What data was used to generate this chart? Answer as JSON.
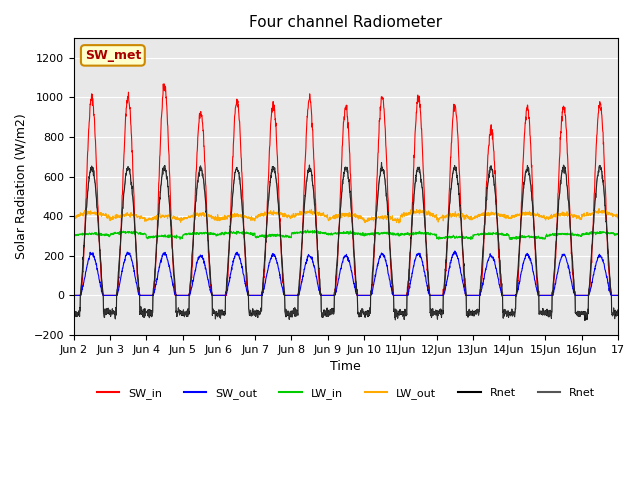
{
  "title": "Four channel Radiometer",
  "xlabel": "Time",
  "ylabel": "Solar Radiation (W/m2)",
  "ylim": [
    -200,
    1300
  ],
  "yticks": [
    -200,
    0,
    200,
    400,
    600,
    800,
    1000,
    1200
  ],
  "xtick_positions": [
    0,
    1,
    2,
    3,
    4,
    5,
    6,
    7,
    8,
    9,
    10,
    11,
    12,
    13,
    14,
    15
  ],
  "xtick_labels": [
    "Jun 2",
    "Jun 3",
    "Jun 4",
    "Jun 5",
    "Jun 6",
    "Jun 7",
    "Jun 8",
    "Jun 9",
    "Jun 10",
    "11Jun",
    "12Jun",
    "13Jun",
    "14Jun",
    "15Jun",
    "16Jun",
    "17"
  ],
  "annotation_text": "SW_met",
  "annotation_bg": "#ffffcc",
  "annotation_edge": "#cc8800",
  "annotation_text_color": "#aa0000",
  "colors": {
    "SW_in": "#ff0000",
    "SW_out": "#0000ff",
    "LW_in": "#00cc00",
    "LW_out": "#ffaa00",
    "Rnet_black": "#000000",
    "Rnet_dark": "#555555"
  },
  "background_color": "#e8e8e8",
  "n_days": 15,
  "SW_in_peaks": [
    1000,
    1000,
    1055,
    930,
    990,
    965,
    990,
    950,
    1000,
    1005,
    960,
    840,
    945,
    960,
    975
  ],
  "SW_out_peaks": [
    210,
    215,
    210,
    200,
    210,
    205,
    200,
    200,
    210,
    210,
    215,
    200,
    205,
    205,
    200
  ],
  "LW_in_base": 300,
  "LW_in_amp": 30,
  "LW_out_base": 390,
  "LW_out_amp": 55,
  "Rnet_peak": 645,
  "Rnet_night": -90,
  "figsize": [
    6.4,
    4.8
  ],
  "dpi": 100
}
